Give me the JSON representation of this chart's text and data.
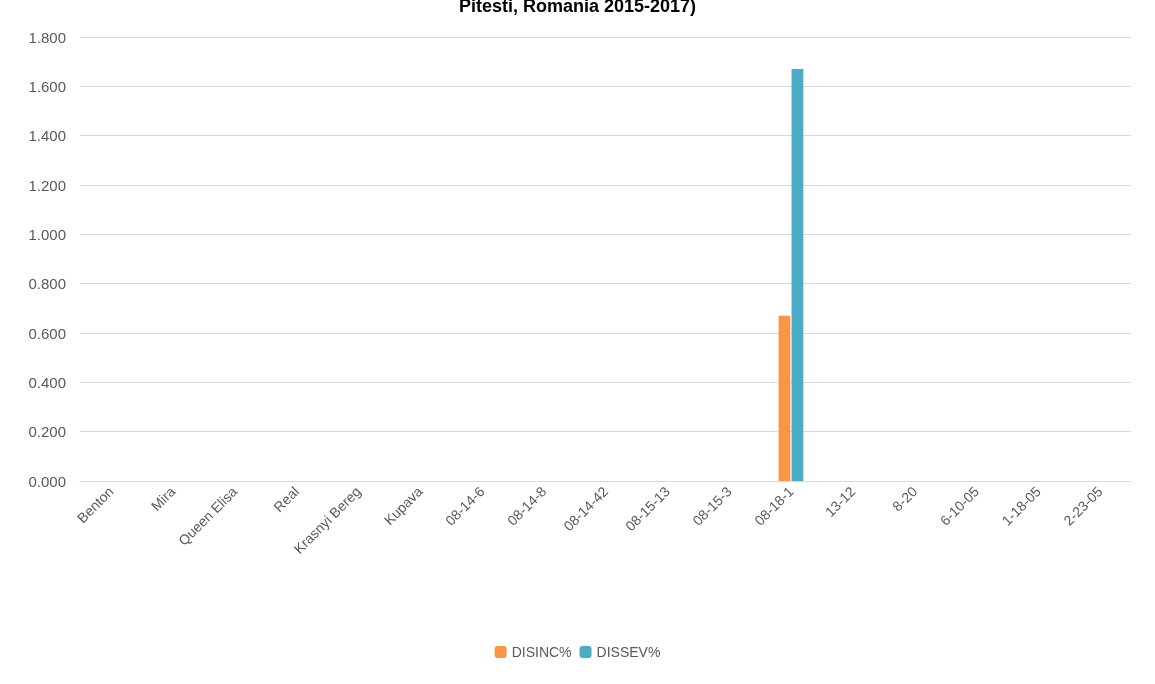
{
  "chart_data": {
    "type": "bar",
    "title": "Pitesti, Romania 2015-2017)",
    "categories": [
      "Benton",
      "Mira",
      "Queen Elisa",
      "Real",
      "Krasnyi Bereg",
      "Kupava",
      "08-14-6",
      "08-14-8",
      "08-14-42",
      "08-15-13",
      "08-15-3",
      "08-18-1",
      "13-12",
      "8-20",
      "6-10-05",
      "1-18-05",
      "2-23-05"
    ],
    "series": [
      {
        "name": "DISINC%",
        "color": "#f79646",
        "values": [
          0,
          0,
          0,
          0,
          0,
          0,
          0,
          0,
          0,
          0,
          0,
          0.67,
          0,
          0,
          0,
          0,
          0
        ]
      },
      {
        "name": "DISSEV%",
        "color": "#4bacc6",
        "values": [
          0,
          0,
          0,
          0,
          0,
          0,
          0,
          0,
          0,
          0,
          0,
          1.67,
          0,
          0,
          0,
          0,
          0
        ]
      }
    ],
    "ylim": [
      0,
      1.8
    ],
    "yticks": [
      {
        "value": 0,
        "label": "0.000"
      },
      {
        "value": 0.2,
        "label": "0.200"
      },
      {
        "value": 0.4,
        "label": "0.400"
      },
      {
        "value": 0.6,
        "label": "0.600"
      },
      {
        "value": 0.8,
        "label": "0.800"
      },
      {
        "value": 1,
        "label": "1.000"
      },
      {
        "value": 1.2,
        "label": "1.200"
      },
      {
        "value": 1.4,
        "label": "1.400"
      },
      {
        "value": 1.6,
        "label": "1.600"
      },
      {
        "value": 1.8,
        "label": "1.800"
      }
    ],
    "grid": "y",
    "legend": "bottom"
  }
}
